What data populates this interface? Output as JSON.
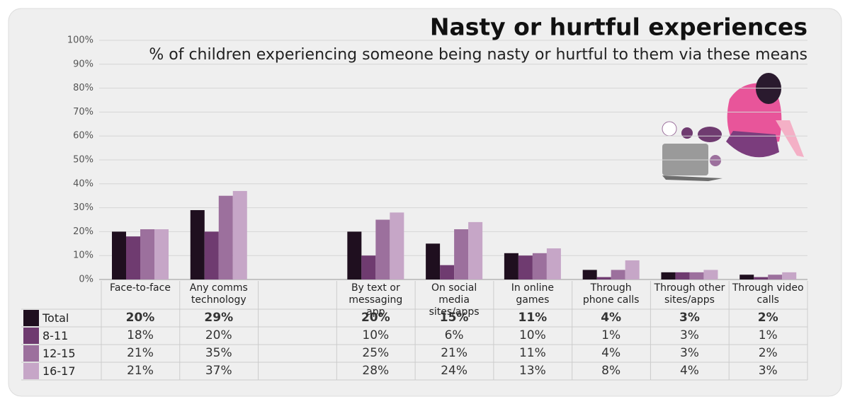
{
  "chart_data": {
    "type": "bar",
    "title": "Nasty or hurtful experiences",
    "subtitle": "% of children experiencing someone being nasty or hurtful to them via these means",
    "categories": [
      "Face-to-face",
      "Any comms technology",
      null,
      "By text or messaging app",
      "On social media sites/apps",
      "In online games",
      "Through phone calls",
      "Through other sites/apps",
      "Through video calls"
    ],
    "series": [
      {
        "name": "Total",
        "color": "#1f0f1f",
        "values": [
          20,
          29,
          null,
          20,
          15,
          11,
          4,
          3,
          2
        ],
        "value_labels": [
          "20%",
          "29%",
          null,
          "20%",
          "15%",
          "11%",
          "4%",
          "3%",
          "2%"
        ]
      },
      {
        "name": "8-11",
        "color": "#6f3b70",
        "values": [
          18,
          20,
          null,
          10,
          6,
          10,
          1,
          3,
          1
        ],
        "value_labels": [
          "18%",
          "20%",
          null,
          "10%",
          "6%",
          "10%",
          "1%",
          "3%",
          "1%"
        ]
      },
      {
        "name": "12-15",
        "color": "#9c709d",
        "values": [
          21,
          35,
          null,
          25,
          21,
          11,
          4,
          3,
          2
        ],
        "value_labels": [
          "21%",
          "35%",
          null,
          "25%",
          "21%",
          "11%",
          "4%",
          "3%",
          "2%"
        ]
      },
      {
        "name": "16-17",
        "color": "#c6a6c7",
        "values": [
          21,
          37,
          null,
          28,
          24,
          13,
          8,
          4,
          3
        ],
        "value_labels": [
          "21%",
          "37%",
          null,
          "28%",
          "24%",
          "13%",
          "8%",
          "4%",
          "3%"
        ]
      }
    ],
    "ylim": [
      0,
      100
    ],
    "yticks": [
      {
        "value": 0,
        "label": "0%"
      },
      {
        "value": 10,
        "label": "10%"
      },
      {
        "value": 20,
        "label": "20%"
      },
      {
        "value": 30,
        "label": "30%"
      },
      {
        "value": 40,
        "label": "40%"
      },
      {
        "value": 50,
        "label": "50%"
      },
      {
        "value": 60,
        "label": "60%"
      },
      {
        "value": 70,
        "label": "70%"
      },
      {
        "value": 80,
        "label": "80%"
      },
      {
        "value": 90,
        "label": "90%"
      },
      {
        "value": 100,
        "label": "100%"
      }
    ],
    "grid": true
  }
}
